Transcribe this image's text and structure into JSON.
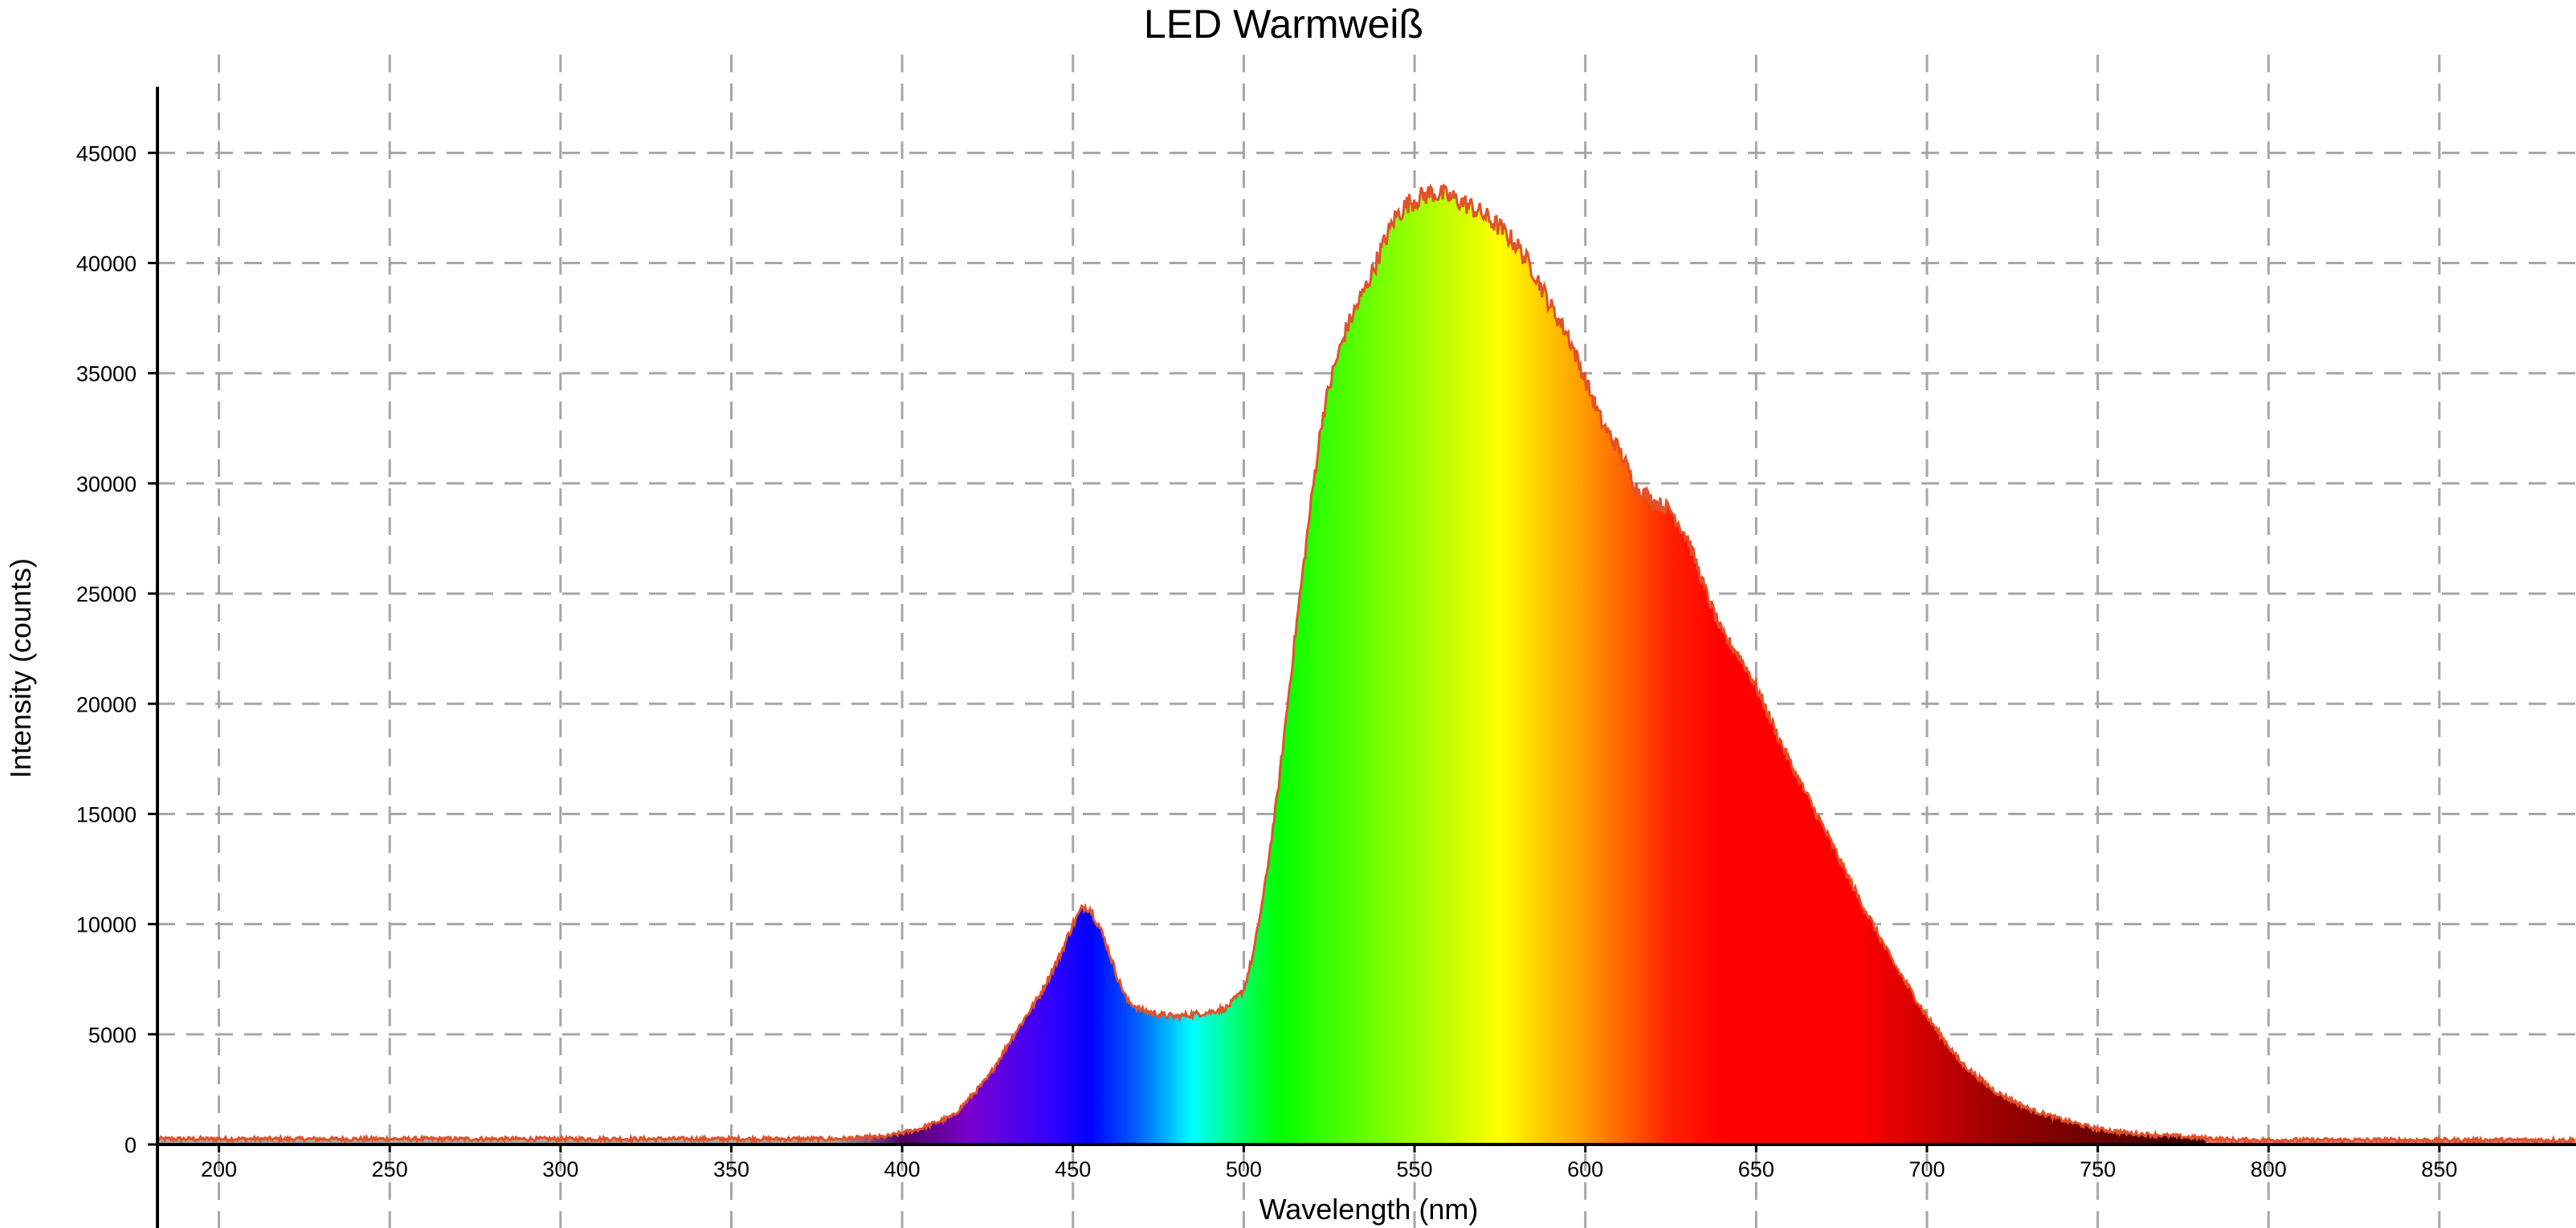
{
  "chart_data": {
    "type": "area",
    "title": "LED Warmweiß",
    "xlabel": "Wavelength (nm)",
    "ylabel": "Intensity (counts)",
    "xlim": [
      182,
      890
    ],
    "ylim": [
      0,
      48000
    ],
    "x_ticks": [
      "200",
      "250",
      "300",
      "350",
      "400",
      "450",
      "500",
      "550",
      "600",
      "650",
      "700",
      "750",
      "800",
      "850"
    ],
    "y_ticks": [
      "0",
      "5000",
      "10000",
      "15000",
      "20000",
      "25000",
      "30000",
      "35000",
      "40000",
      "45000"
    ],
    "grid": true,
    "fill": "visible-spectrum gradient",
    "line_color": "#e0522a",
    "series": [
      {
        "x": [
          182,
          250,
          300,
          350,
          380,
          395,
          405,
          415,
          425,
          432,
          440,
          446,
          450,
          453,
          455,
          458,
          460,
          463,
          466,
          470,
          475,
          480,
          485,
          490,
          495,
          500,
          503,
          506,
          510,
          515,
          520,
          523,
          526,
          530,
          533,
          536,
          540,
          544,
          548,
          552,
          555,
          558,
          562,
          566,
          570,
          575,
          580,
          585,
          590,
          595,
          598,
          600,
          605,
          610,
          615,
          620,
          625,
          630,
          635,
          640,
          645,
          650,
          655,
          660,
          670,
          680,
          690,
          700,
          710,
          720,
          730,
          740,
          750,
          760,
          770,
          780,
          790,
          800,
          820,
          850,
          890
        ],
        "y": [
          250,
          250,
          250,
          250,
          250,
          350,
          700,
          1300,
          3000,
          4800,
          6700,
          8500,
          10000,
          10800,
          10700,
          9800,
          9000,
          7600,
          6500,
          6100,
          5900,
          5800,
          5900,
          6000,
          6200,
          7000,
          8800,
          11500,
          16000,
          23000,
          29500,
          33000,
          35000,
          37000,
          38000,
          39000,
          40500,
          42000,
          42700,
          43000,
          43200,
          43100,
          42900,
          42600,
          42200,
          41600,
          40800,
          39600,
          38000,
          36700,
          35500,
          34700,
          32700,
          31500,
          29800,
          29200,
          28800,
          27500,
          25200,
          23200,
          22200,
          20800,
          19000,
          17300,
          14300,
          11200,
          8300,
          5800,
          3700,
          2400,
          1600,
          1100,
          700,
          500,
          400,
          300,
          200,
          200,
          200,
          200,
          200
        ]
      }
    ]
  }
}
